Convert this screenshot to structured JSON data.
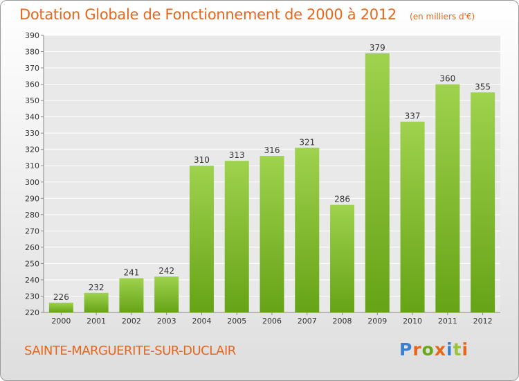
{
  "title": "Dotation Globale de Fonctionnement de 2000 à 2012",
  "subtitle": "(en milliers d'€)",
  "commune": "SAINTE-MARGUERITE-SUR-DUCLAIR",
  "logo": {
    "text": "Proxiti",
    "letter_colors": [
      "#3a7fd0",
      "#e8661c",
      "#6aa61a",
      "#e8661c",
      "#3a7fd0",
      "#9ac23c",
      "#e8661c"
    ]
  },
  "colors": {
    "bar_light": "#9fd24e",
    "bar_dark": "#66a316",
    "title": "#e8661c",
    "grid": "#ffffff",
    "text": "#333333"
  },
  "chart_data": {
    "type": "bar",
    "title": "Dotation Globale de Fonctionnement de 2000 à 2012",
    "subtitle": "(en milliers d'€)",
    "categories": [
      "2000",
      "2001",
      "2002",
      "2003",
      "2004",
      "2005",
      "2006",
      "2007",
      "2008",
      "2009",
      "2010",
      "2011",
      "2012"
    ],
    "values": [
      226,
      232,
      241,
      242,
      310,
      313,
      316,
      321,
      286,
      379,
      337,
      360,
      355
    ],
    "ylim": [
      220,
      390
    ],
    "yticks": [
      220,
      230,
      240,
      250,
      260,
      270,
      280,
      290,
      300,
      310,
      320,
      330,
      340,
      350,
      360,
      370,
      380,
      390
    ],
    "grid": true,
    "xlabel": "",
    "ylabel": ""
  }
}
